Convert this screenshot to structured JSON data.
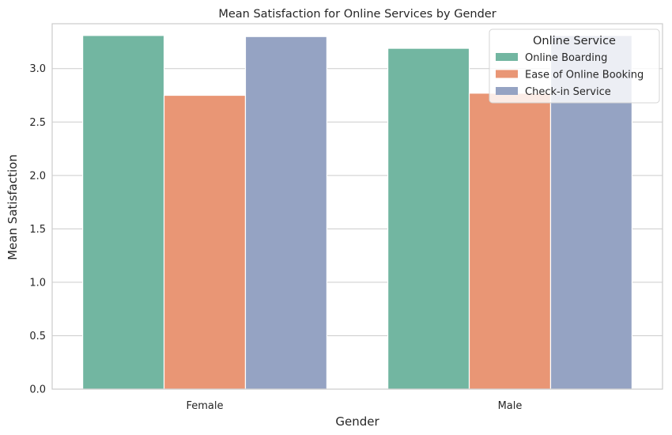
{
  "chart_data": {
    "type": "bar",
    "title": "Mean Satisfaction for Online Services by Gender",
    "xlabel": "Gender",
    "ylabel": "Mean Satisfaction",
    "categories": [
      "Female",
      "Male"
    ],
    "ylim": [
      0,
      3.42
    ],
    "yticks": [
      "0.0",
      "0.5",
      "1.0",
      "1.5",
      "2.0",
      "2.5",
      "3.0"
    ],
    "ytick_values": [
      0,
      0.5,
      1.0,
      1.5,
      2.0,
      2.5,
      3.0
    ],
    "grid": true,
    "legend": {
      "title": "Online Service",
      "placement": "top-right"
    },
    "series": [
      {
        "name": "Online Boarding",
        "color": "#72b6a1",
        "values": [
          3.31,
          3.19
        ]
      },
      {
        "name": "Ease of Online Booking",
        "color": "#e99675",
        "values": [
          2.75,
          2.77
        ]
      },
      {
        "name": "Check-in Service",
        "color": "#95a3c3",
        "values": [
          3.3,
          3.31
        ]
      }
    ]
  },
  "colors": {
    "grid": "#cccccc",
    "spine": "#cccccc",
    "text": "#262626",
    "bar_edge": "#ffffff"
  }
}
